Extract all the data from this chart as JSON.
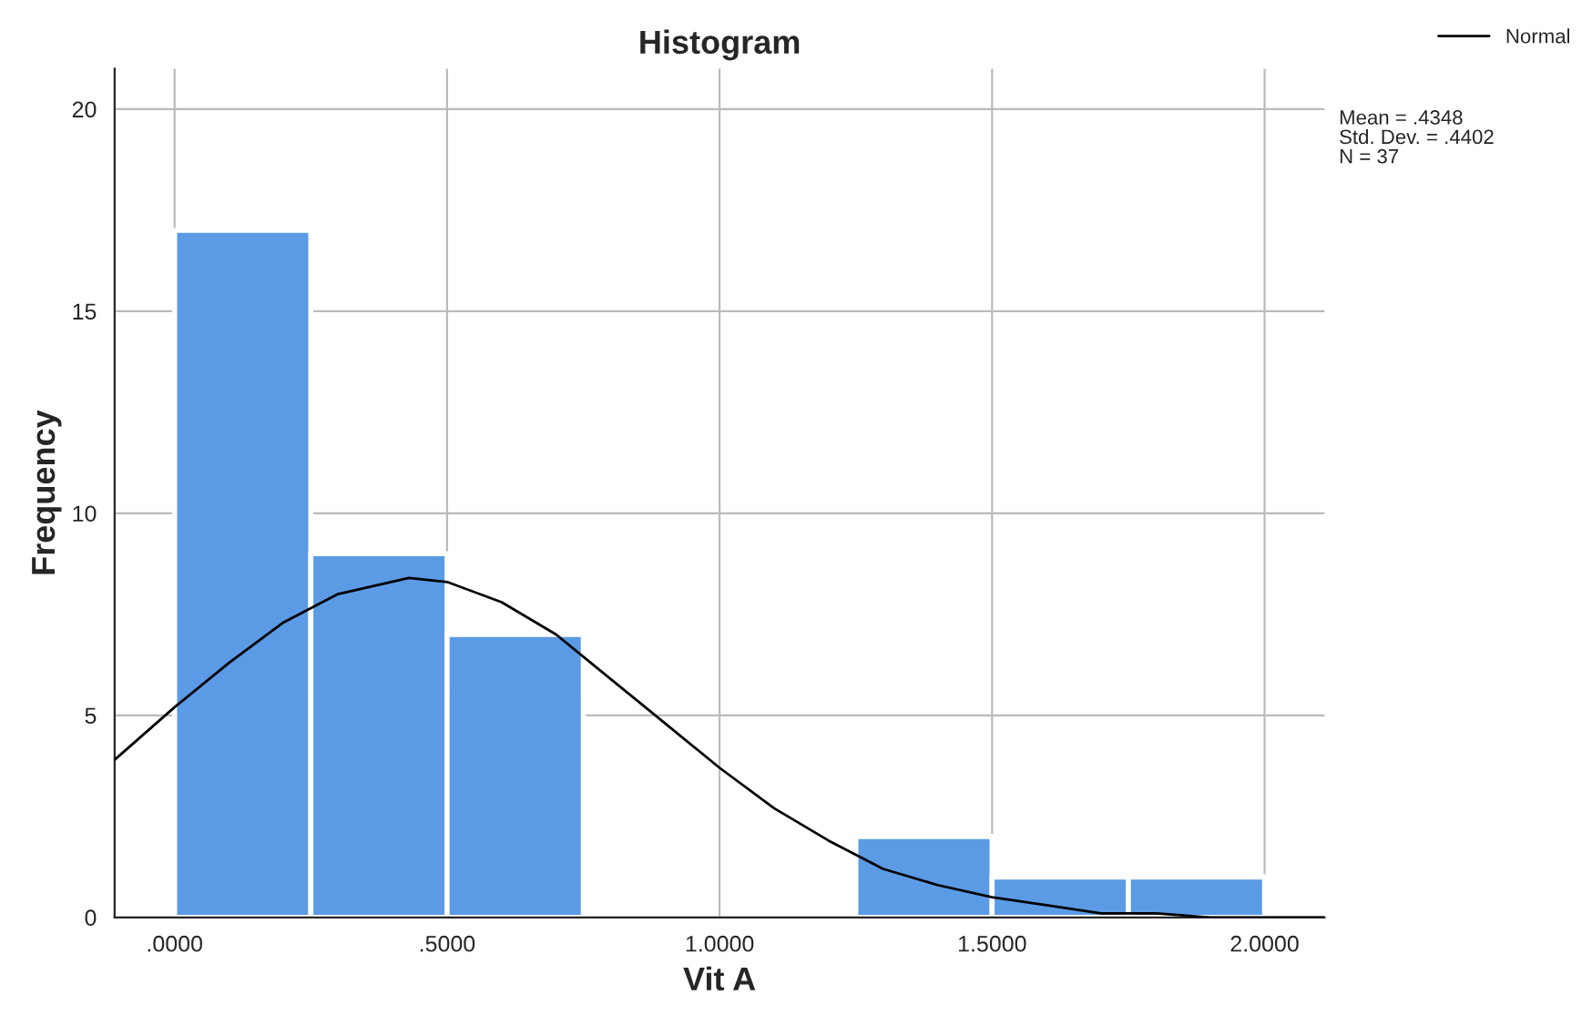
{
  "chart_data": {
    "type": "histogram",
    "title": "Histogram",
    "xlabel": "Vit A",
    "ylabel": "Frequency",
    "bins": [
      0,
      0.25,
      0.5,
      0.75,
      1.0,
      1.25,
      1.5,
      1.75,
      2.0
    ],
    "values": [
      17,
      9,
      7,
      0,
      0,
      2,
      1,
      1
    ],
    "color": "#5b9be6",
    "series": [
      {
        "name": "Normal",
        "type": "line",
        "color": "#000000",
        "x": [
          -0.11,
          0,
          0.1,
          0.2,
          0.3,
          0.43,
          0.5,
          0.6,
          0.7,
          0.8,
          0.9,
          1.0,
          1.1,
          1.2,
          1.3,
          1.4,
          1.5,
          1.6,
          1.7,
          1.8,
          1.9,
          2.0,
          2.11
        ],
        "values": [
          3.9,
          5.2,
          6.3,
          7.3,
          8.0,
          8.4,
          8.3,
          7.8,
          7.0,
          5.9,
          4.8,
          3.7,
          2.7,
          1.9,
          1.2,
          0.8,
          0.5,
          0.3,
          0.1,
          0.1,
          0,
          0,
          0
        ]
      }
    ],
    "xlim": [
      -0.11,
      2.11
    ],
    "ylim": [
      0,
      21
    ],
    "xticks": [
      {
        "value": 0,
        "label": ".0000"
      },
      {
        "value": 0.5,
        "label": ".5000"
      },
      {
        "value": 1.0,
        "label": "1.0000"
      },
      {
        "value": 1.5,
        "label": "1.5000"
      },
      {
        "value": 2.0,
        "label": "2.0000"
      }
    ],
    "yticks": [
      0,
      5,
      10,
      15,
      20
    ],
    "grid": true,
    "legend": "top right",
    "annotations": [
      "Mean = .4348",
      "Std. Dev. = .4402",
      "N = 37"
    ]
  }
}
